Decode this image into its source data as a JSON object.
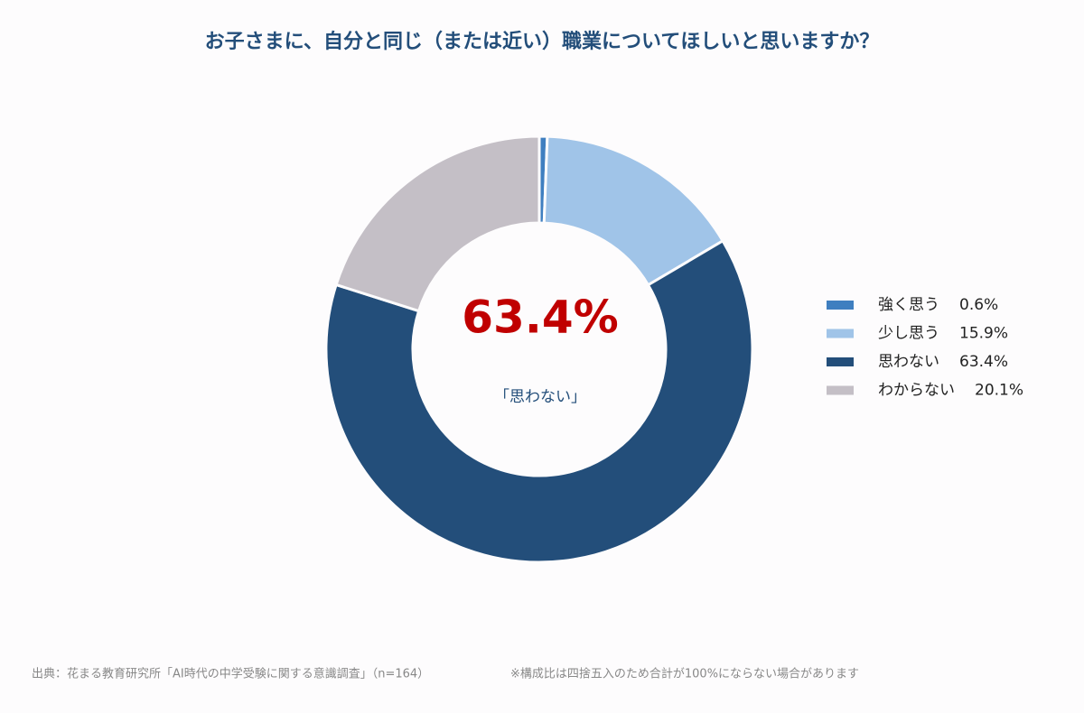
{
  "chart_data": {
    "type": "donut",
    "title": "お子さまに、自分と同じ（または近い）職業についてほしいと思いますか？",
    "categories": [
      "強く思う",
      "少し思う",
      "思わない",
      "わからない"
    ],
    "values": [
      0.6,
      15.9,
      63.4,
      20.1
    ],
    "value_labels": [
      "0.6%",
      "15.9%",
      "63.4%",
      "20.1%"
    ],
    "colors": [
      "#3f7fc0",
      "#a0c4e8",
      "#234e7a",
      "#c4bfc6"
    ],
    "center_caption": "「思わない」",
    "legend": "right",
    "source": "出典：花まる教育研究所「AI時代の中学受験に関する意識調査」（n=164）",
    "note": "※構成比は四捨五入のため合計が100%にならない場合があります"
  }
}
